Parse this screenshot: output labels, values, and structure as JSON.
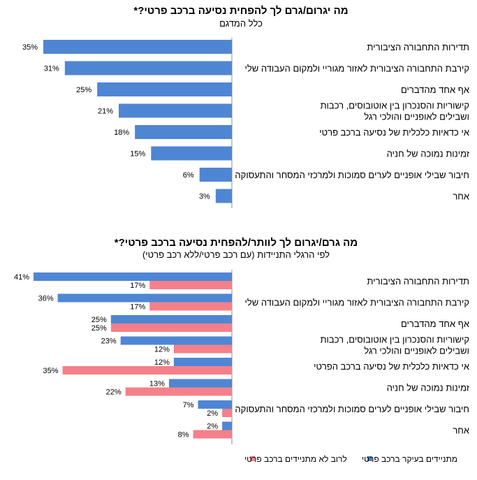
{
  "colors": {
    "blue": "#4F86D4",
    "pink": "#F5808A",
    "axis": "#8c8c8c"
  },
  "chart_data": [
    {
      "type": "bar",
      "orientation": "horizontal",
      "title": "מה יגרום/גרם לך להפחית נסיעה ברכב פרטי?*",
      "subtitle": "כלל המדגם",
      "categories": [
        "תדירות התחבורה הציבורית",
        "קירבת התחבורה הציבורית לאזור מגוריי ולמקום העבודה שלי",
        "אף אחד מהדברים",
        "קישוריות והסנכרון בין אוטובוסים, רכבות ושבילים לאופניים והולכי רגל",
        "אי כדאיות כלכלית של נסיעה ברכב פרטי",
        "זמינות נמוכה של חניה",
        "חיבור שבילי אופניים לערים סמוכות ולמרכזי המסחר והתעסוקה",
        "אחר"
      ],
      "category_lines": [
        [
          "תדירות התחבורה הציבורית"
        ],
        [
          "קירבת התחבורה הציבורית לאזור מגוריי ולמקום העבודה שלי"
        ],
        [
          "אף אחד מהדברים"
        ],
        [
          "קישוריות והסנכרון בין אוטובוסים, רכבות",
          "ושבילים לאופניים והולכי רגל"
        ],
        [
          "אי כדאיות כלכלית של נסיעה ברכב פרטי"
        ],
        [
          "זמינות נמוכה של חניה"
        ],
        [
          "חיבור שבילי אופניים לערים סמוכות ולמרכזי המסחר והתעסוקה"
        ],
        [
          "אחר"
        ]
      ],
      "values": [
        35,
        31,
        25,
        21,
        18,
        15,
        6,
        3
      ],
      "labels": [
        "35%",
        "31%",
        "25%",
        "21%",
        "18%",
        "15%",
        "6%",
        "3%"
      ],
      "unit": "%"
    },
    {
      "type": "bar",
      "orientation": "horizontal",
      "title": "מה גרם/יגרום לך לוותר/להפחית נסיעה ברכב פרטי?*",
      "subtitle": "לפי הרגלי התניידות (עם רכב פרטי/ללא רכב פרטי)",
      "categories": [
        "תדירות התחבורה הציבורית",
        "קירבת התחבורה הציבורית לאזור מגוריי ולמקום העבודה שלי",
        "אף אחד מהדברים",
        "קישוריות והסנכרון בין אוטובוסים, רכבות ושבילים לאופניים והולכי רגל",
        "אי כדאיות כלכלית של נסיעה ברכב הפרטי",
        "זמינות נמוכה של חניה",
        "חיבור שבילי אופניים לערים סמוכות ולמרכזי המסחר והתעסוקה",
        "אחר"
      ],
      "category_lines": [
        [
          "תדירות התחבורה הציבורית"
        ],
        [
          "קירבת התחבורה הציבורית לאזור מגוריי ולמקום העבודה שלי"
        ],
        [
          "אף אחד מהדברים"
        ],
        [
          "קישוריות והסנכרון בין אוטובוסים, רכבות",
          "ושבילים לאופניים והולכי רגל"
        ],
        [
          "אי כדאיות כלכלית של נסיעה ברכב הפרטי"
        ],
        [
          "זמינות נמוכה של חניה"
        ],
        [
          "חיבור שבילי אופניים לערים סמוכות ולמרכזי המסחר והתעסוקה"
        ],
        [
          "אחר"
        ]
      ],
      "series": [
        {
          "name": "מתניידים בעיקר ברכב פרטי",
          "values": [
            41,
            36,
            25,
            23,
            12,
            13,
            7,
            2
          ],
          "labels": [
            "41%",
            "36%",
            "25%",
            "23%",
            "12%",
            "13%",
            "7%",
            "2%"
          ]
        },
        {
          "name": "לרוב לא מתניידים ברכב פרטי",
          "values": [
            17,
            17,
            25,
            12,
            35,
            22,
            2,
            8
          ],
          "labels": [
            "17%",
            "17%",
            "25%",
            "12%",
            "35%",
            "22%",
            "2%",
            "8%"
          ]
        }
      ],
      "legend_position": "bottom",
      "unit": "%"
    }
  ]
}
